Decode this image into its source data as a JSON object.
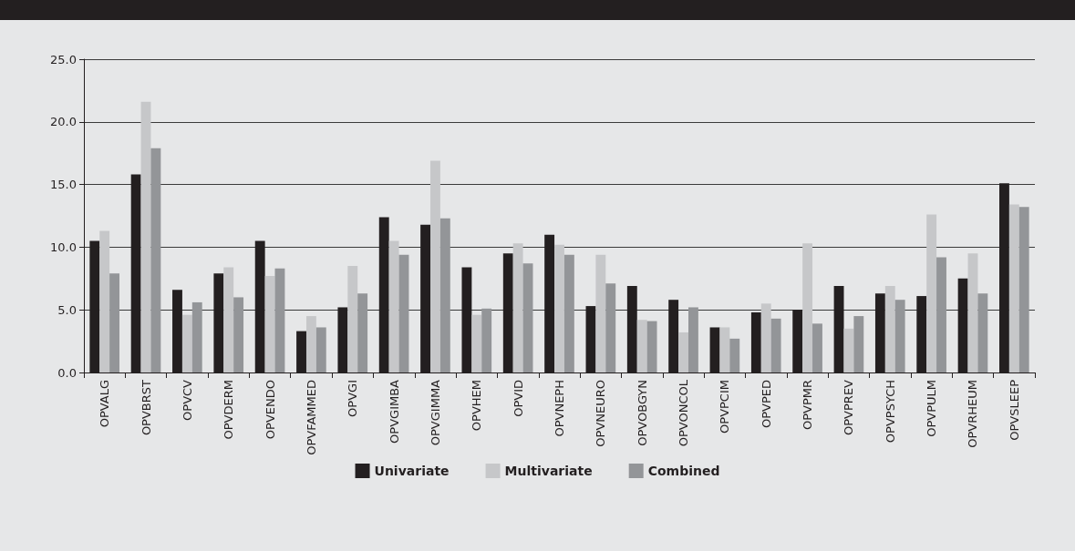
{
  "chart_data": {
    "type": "bar",
    "categories": [
      "OPVALG",
      "OPVBRST",
      "OPVCV",
      "OPVDERM",
      "OPVENDO",
      "OPVFAMMED",
      "OPVGI",
      "OPVGIMBA",
      "OPVGIMMA",
      "OPVHEM",
      "OPVID",
      "OPVNEPH",
      "OPVNEURO",
      "OPVOBGYN",
      "OPVONCOL",
      "OPVPCIM",
      "OPVPED",
      "OPVPMR",
      "OPVPREV",
      "OPVPSYCH",
      "OPVPULM",
      "OPVRHEUM",
      "OPVSLEEP"
    ],
    "series": [
      {
        "name": "Univariate",
        "color": "#231f20",
        "values": [
          10.5,
          15.8,
          6.6,
          7.9,
          10.5,
          3.3,
          5.2,
          12.4,
          11.8,
          8.4,
          9.5,
          11.0,
          5.3,
          6.9,
          5.8,
          3.6,
          4.8,
          5.0,
          6.9,
          6.3,
          6.1,
          7.5,
          15.1
        ]
      },
      {
        "name": "Multivariate",
        "color": "#c6c7c9",
        "values": [
          11.3,
          21.6,
          4.6,
          8.4,
          7.7,
          4.5,
          8.5,
          10.5,
          16.9,
          4.6,
          10.3,
          10.2,
          9.4,
          4.2,
          3.2,
          3.6,
          5.5,
          10.3,
          3.5,
          6.9,
          12.6,
          9.5,
          13.4
        ]
      },
      {
        "name": "Combined",
        "color": "#939598",
        "values": [
          7.9,
          17.9,
          5.6,
          6.0,
          8.3,
          3.6,
          6.3,
          9.4,
          12.3,
          5.1,
          8.7,
          9.4,
          7.1,
          4.1,
          5.2,
          2.7,
          4.3,
          3.9,
          4.5,
          5.8,
          9.2,
          6.3,
          13.2
        ]
      }
    ],
    "ylim": [
      0,
      25
    ],
    "yticks": [
      {
        "value": 0,
        "label": "0.0"
      },
      {
        "value": 5,
        "label": "5.0"
      },
      {
        "value": 10,
        "label": "10.0"
      },
      {
        "value": 15,
        "label": "15.0"
      },
      {
        "value": 20,
        "label": "20.0"
      },
      {
        "value": 25,
        "label": "25.0"
      }
    ],
    "grid": "y",
    "legend": "bottom"
  }
}
